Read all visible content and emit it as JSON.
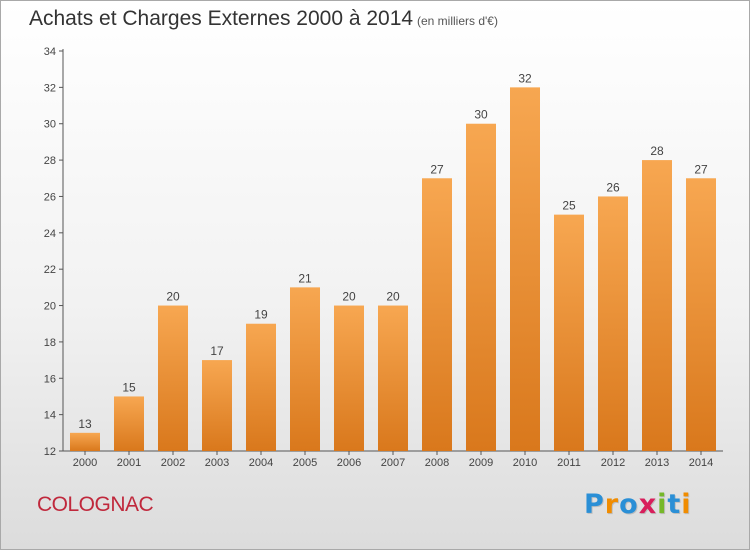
{
  "header": {
    "title": "Achats et Charges Externes 2000 à 2014",
    "subtitle": "(en milliers d'€)"
  },
  "footer": {
    "commune": "COLOGNAC",
    "logo_text": "Proxiti",
    "logo_colors": [
      "#2a8fd6",
      "#f08c00",
      "#2a8fd6",
      "#d81e5b",
      "#76b82a",
      "#2a8fd6",
      "#f08c00"
    ]
  },
  "colors": {
    "bar_top": "#f7a751",
    "bar_bottom": "#d9781c",
    "axis": "#555555",
    "grid": "#d9d9d9"
  },
  "chart_data": {
    "type": "bar",
    "title": "Achats et Charges Externes 2000 à 2014",
    "subtitle": "(en milliers d'€)",
    "xlabel": "",
    "ylabel": "",
    "categories": [
      "2000",
      "2001",
      "2002",
      "2003",
      "2004",
      "2005",
      "2006",
      "2007",
      "2008",
      "2009",
      "2010",
      "2011",
      "2012",
      "2013",
      "2014"
    ],
    "values": [
      13,
      15,
      20,
      17,
      19,
      21,
      20,
      20,
      27,
      30,
      32,
      25,
      26,
      28,
      27
    ],
    "ylim": [
      12,
      34
    ],
    "yticks": [
      12,
      14,
      16,
      18,
      20,
      22,
      24,
      26,
      28,
      30,
      32,
      34
    ],
    "grid": false,
    "data_labels": true
  }
}
